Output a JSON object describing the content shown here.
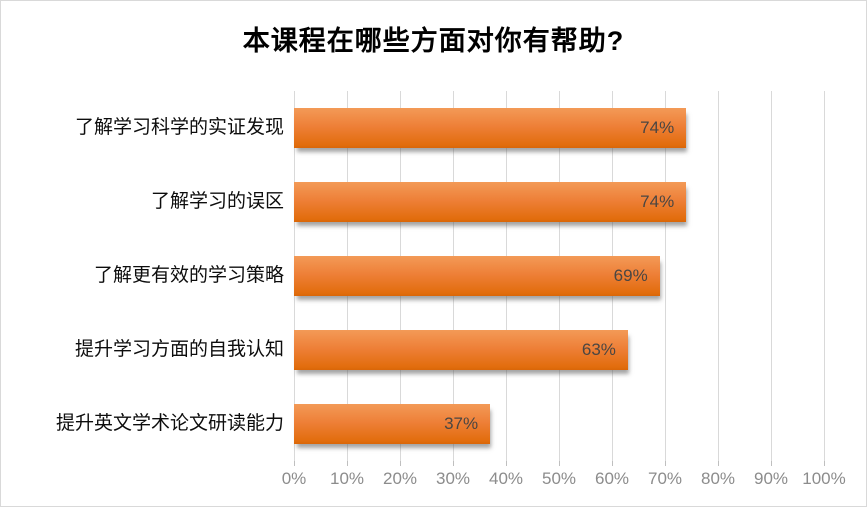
{
  "window": {
    "background": "#FFFFFF",
    "border_color": "#D9D9D9"
  },
  "chart_data": {
    "type": "bar",
    "orientation": "horizontal",
    "title": "本课程在哪些方面对你有帮助?",
    "categories": [
      "了解学习科学的实证发现",
      "了解学习的误区",
      "了解更有效的学习策略",
      "提升学习方面的自我认知",
      "提升英文学术论文研读能力"
    ],
    "values": [
      74,
      74,
      69,
      63,
      37
    ],
    "data_labels": [
      "74%",
      "74%",
      "69%",
      "63%",
      "37%"
    ],
    "data_label_position": "inside-end",
    "x_ticks": [
      "0%",
      "10%",
      "20%",
      "30%",
      "40%",
      "50%",
      "60%",
      "70%",
      "80%",
      "90%",
      "100%"
    ],
    "xlim": [
      0,
      100
    ],
    "grid": true,
    "legend": "none",
    "colors": {
      "bar_gradient_top": "#F39A57",
      "bar_gradient_mid": "#ED7D31",
      "bar_gradient_bottom": "#E26D0D",
      "bar_shadow": "#8C8C8C",
      "data_label": "#4A4642",
      "category_label": "#0D0D0D",
      "tick_label": "#8C8C8C",
      "gridline": "#D9D9D9",
      "title": "#000000",
      "chart_border": "#D9D9D9"
    }
  }
}
